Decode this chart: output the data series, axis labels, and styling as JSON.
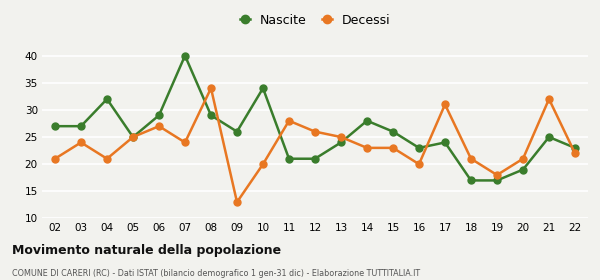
{
  "years": [
    "02",
    "03",
    "04",
    "05",
    "06",
    "07",
    "08",
    "09",
    "10",
    "11",
    "12",
    "13",
    "14",
    "15",
    "16",
    "17",
    "18",
    "19",
    "20",
    "21",
    "22"
  ],
  "nascite": [
    27,
    27,
    32,
    25,
    29,
    40,
    29,
    26,
    34,
    21,
    21,
    24,
    28,
    26,
    23,
    24,
    17,
    17,
    19,
    25,
    23
  ],
  "decessi": [
    21,
    24,
    21,
    25,
    27,
    24,
    34,
    13,
    20,
    28,
    26,
    25,
    23,
    23,
    20,
    31,
    21,
    18,
    21,
    32,
    22
  ],
  "nascite_color": "#3a7d2c",
  "decessi_color": "#e87722",
  "bg_color": "#f2f2ee",
  "grid_color": "#ffffff",
  "ylim": [
    10,
    42
  ],
  "yticks": [
    10,
    15,
    20,
    25,
    30,
    35,
    40
  ],
  "title": "Movimento naturale della popolazione",
  "subtitle": "COMUNE DI CARERI (RC) - Dati ISTAT (bilancio demografico 1 gen-31 dic) - Elaborazione TUTTITALIA.IT",
  "legend_nascite": "Nascite",
  "legend_decessi": "Decessi",
  "marker_size": 5,
  "line_width": 1.8
}
